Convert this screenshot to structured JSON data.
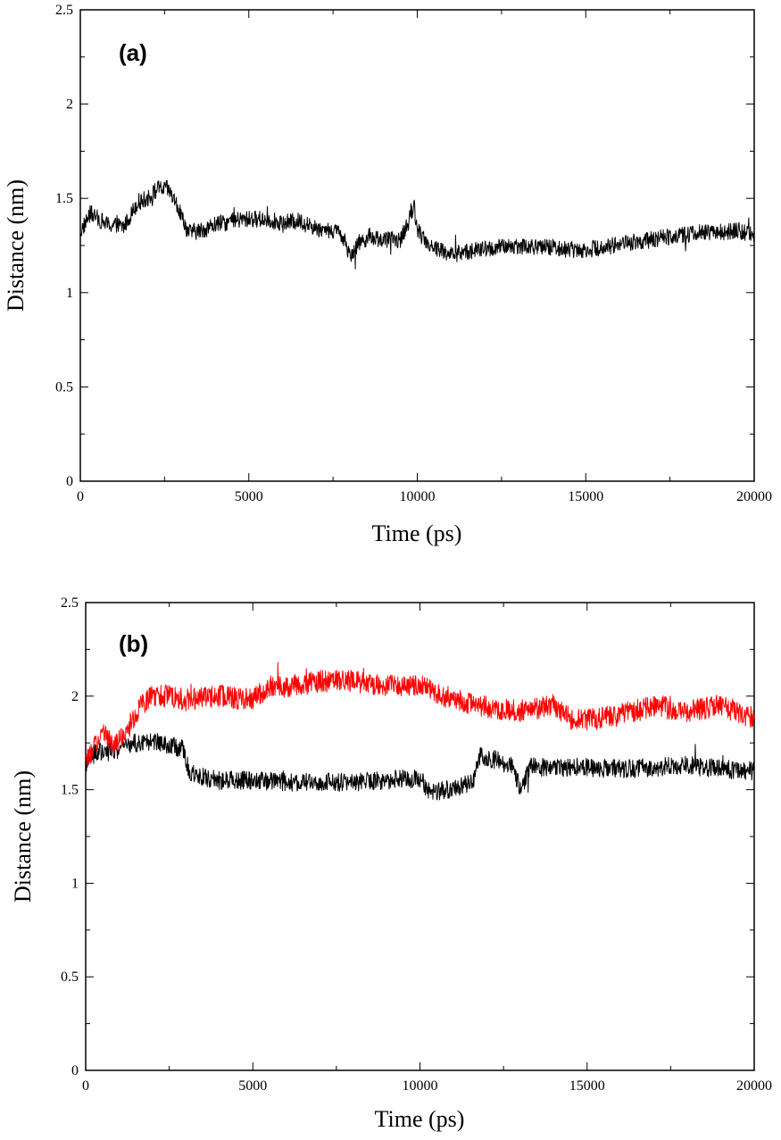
{
  "chart_data": [
    {
      "type": "line",
      "panel_label": "(a)",
      "xlabel": "Time (ps)",
      "ylabel": "Distance (nm)",
      "xlim": [
        0,
        20000
      ],
      "ylim": [
        0,
        2.5
      ],
      "xticks": [
        "0",
        "5000",
        "10000",
        "15000",
        "20000"
      ],
      "yticks": [
        "0",
        "0.5",
        "1",
        "1.5",
        "2",
        "2.5"
      ],
      "grid": false,
      "series": [
        {
          "color": "#000000",
          "noise": 0.045,
          "x": [
            0,
            300,
            800,
            1300,
            1700,
            2000,
            2300,
            2600,
            2900,
            3200,
            3600,
            4000,
            4500,
            5000,
            5500,
            6000,
            6500,
            7000,
            7500,
            7800,
            8000,
            8300,
            8600,
            9000,
            9500,
            9800,
            9900,
            10000,
            10200,
            10500,
            10800,
            11000,
            11500,
            12000,
            12500,
            13000,
            13500,
            14000,
            14500,
            15000,
            15500,
            16000,
            16500,
            17000,
            17500,
            18000,
            18500,
            19000,
            19500,
            20000
          ],
          "y": [
            1.32,
            1.42,
            1.36,
            1.35,
            1.48,
            1.5,
            1.55,
            1.55,
            1.45,
            1.32,
            1.33,
            1.36,
            1.38,
            1.39,
            1.39,
            1.37,
            1.38,
            1.34,
            1.33,
            1.3,
            1.2,
            1.27,
            1.3,
            1.28,
            1.28,
            1.4,
            1.47,
            1.34,
            1.28,
            1.24,
            1.22,
            1.2,
            1.22,
            1.23,
            1.24,
            1.25,
            1.24,
            1.24,
            1.23,
            1.23,
            1.24,
            1.26,
            1.27,
            1.28,
            1.3,
            1.31,
            1.32,
            1.32,
            1.33,
            1.31
          ]
        }
      ]
    },
    {
      "type": "line",
      "panel_label": "(b)",
      "xlabel": "Time (ps)",
      "ylabel": "Distance (nm)",
      "xlim": [
        0,
        20000
      ],
      "ylim": [
        0,
        2.5
      ],
      "xticks": [
        "0",
        "5000",
        "10000",
        "15000",
        "20000"
      ],
      "yticks": [
        "0",
        "0.5",
        "1",
        "1.5",
        "2",
        "2.5"
      ],
      "grid": false,
      "series": [
        {
          "color": "#000000",
          "noise": 0.05,
          "x": [
            0,
            300,
            600,
            1000,
            1500,
            2000,
            2500,
            2900,
            3100,
            3500,
            4000,
            5000,
            6000,
            7000,
            8000,
            9000,
            9500,
            10000,
            10300,
            10800,
            11300,
            11600,
            11800,
            12300,
            12800,
            13000,
            13300,
            14000,
            15000,
            16000,
            17000,
            18000,
            19000,
            20000
          ],
          "y": [
            1.64,
            1.7,
            1.7,
            1.72,
            1.75,
            1.76,
            1.74,
            1.72,
            1.6,
            1.57,
            1.55,
            1.55,
            1.54,
            1.54,
            1.54,
            1.55,
            1.56,
            1.56,
            1.48,
            1.5,
            1.52,
            1.55,
            1.68,
            1.66,
            1.62,
            1.5,
            1.62,
            1.62,
            1.62,
            1.61,
            1.62,
            1.63,
            1.61,
            1.6
          ]
        },
        {
          "color": "#ff0000",
          "noise": 0.06,
          "x": [
            0,
            200,
            500,
            800,
            1200,
            1600,
            2000,
            2500,
            3000,
            4000,
            5000,
            5500,
            6000,
            7000,
            8000,
            9000,
            10000,
            11000,
            12000,
            13000,
            14000,
            14500,
            15000,
            16000,
            17000,
            18000,
            19000,
            20000
          ],
          "y": [
            1.65,
            1.7,
            1.82,
            1.74,
            1.8,
            1.95,
            2.0,
            2.0,
            1.98,
            2.0,
            1.98,
            2.05,
            2.05,
            2.08,
            2.08,
            2.06,
            2.06,
            1.98,
            1.94,
            1.92,
            1.95,
            1.88,
            1.87,
            1.9,
            1.95,
            1.92,
            1.95,
            1.88
          ]
        }
      ]
    }
  ]
}
